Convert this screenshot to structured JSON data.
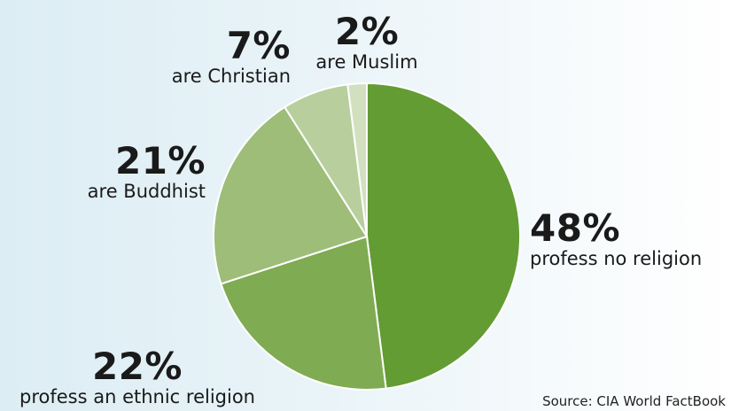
{
  "chart_data": {
    "type": "pie",
    "slices": [
      {
        "percent_label": "48%",
        "value": 48,
        "label": "profess no religion",
        "color": "#629c33"
      },
      {
        "percent_label": "22%",
        "value": 22,
        "label": "profess an ethnic religion",
        "color": "#7fab52"
      },
      {
        "percent_label": "21%",
        "value": 21,
        "label": "are Buddhist",
        "color": "#9dbd78"
      },
      {
        "percent_label": "7%",
        "value": 7,
        "label": "are Christian",
        "color": "#b8cf9d"
      },
      {
        "percent_label": "2%",
        "value": 2,
        "label": "are Muslim",
        "color": "#d2e0bf"
      }
    ],
    "source": "Source: CIA World FactBook"
  }
}
